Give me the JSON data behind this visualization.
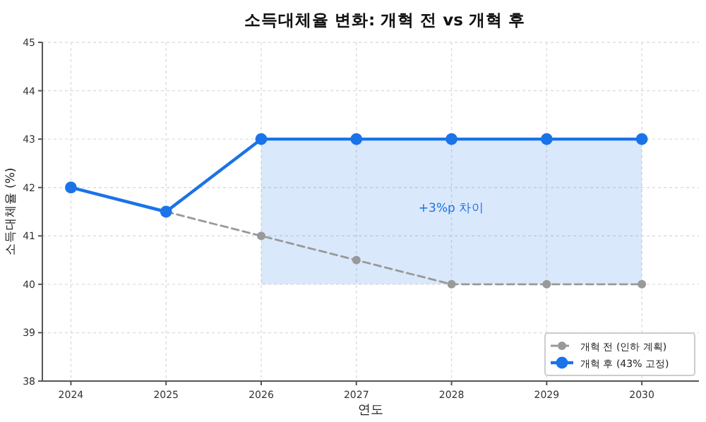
{
  "chart_data": {
    "type": "line",
    "title": "소득대체율 변화: 개혁 전 vs 개혁 후",
    "xlabel": "연도",
    "ylabel": "소득대체율 (%)",
    "x": [
      2024,
      2025,
      2026,
      2027,
      2028,
      2029,
      2030
    ],
    "series": [
      {
        "name": "개혁 전 (인하 계획)",
        "color": "#999999",
        "line_style": "dashed",
        "values": [
          null,
          41.5,
          41,
          40.5,
          40,
          40,
          40
        ]
      },
      {
        "name": "개혁 후 (43% 고정)",
        "color": "#1a73e8",
        "line_style": "solid",
        "values": [
          42,
          41.5,
          43,
          43,
          43,
          43,
          43
        ],
        "lower": [
          null,
          null,
          40,
          40,
          40,
          40,
          40
        ],
        "upper": [
          null,
          null,
          43,
          43,
          43,
          43,
          43
        ]
      }
    ],
    "annotations": [
      "+3%p 차이"
    ],
    "xlim": [
      2023.7,
      2030.6
    ],
    "xticks": [
      2024,
      2025,
      2026,
      2027,
      2028,
      2029,
      2030
    ],
    "ylim": [
      38,
      45
    ],
    "yticks": [
      38,
      39,
      40,
      41,
      42,
      43,
      44,
      45
    ],
    "grid": true,
    "legend": "bottom right",
    "marker": "circle"
  }
}
